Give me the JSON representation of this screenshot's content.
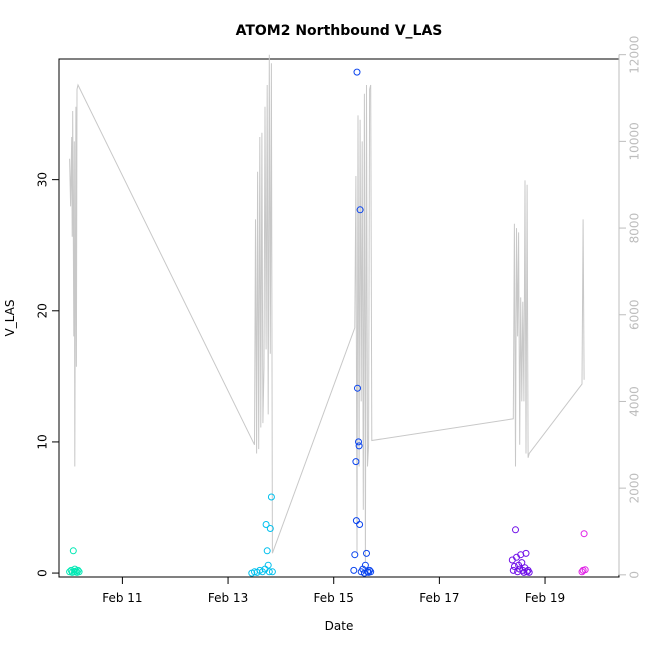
{
  "chart_data": {
    "type": "scatter",
    "title": "ATOM2 Northbound V_LAS",
    "xlabel": "Date",
    "ylabel": "V_LAS",
    "x_ticks": [
      {
        "value": 11.0,
        "label": "Feb 11"
      },
      {
        "value": 13.0,
        "label": "Feb 13"
      },
      {
        "value": 15.0,
        "label": "Feb 15"
      },
      {
        "value": 17.0,
        "label": "Feb 17"
      },
      {
        "value": 19.0,
        "label": "Feb 19"
      }
    ],
    "xlim": [
      9.8,
      20.4
    ],
    "ylim": [
      -0.3,
      39.2
    ],
    "y_ticks": [
      0,
      10,
      20,
      30
    ],
    "y2lim": [
      -50,
      11900
    ],
    "y2_ticks": [
      0,
      2000,
      4000,
      6000,
      8000,
      10000,
      12000
    ],
    "grid": false,
    "legend": "none",
    "colors": {
      "line": "#c8c8c8",
      "frame": "#000000",
      "right_axis": "#bdbdbd"
    },
    "series": [
      {
        "color": "#00e8b4",
        "x": [
          10.0,
          10.03,
          10.05,
          10.07,
          10.09,
          10.1,
          10.12,
          10.14,
          10.16,
          10.18
        ],
        "y": [
          0.1,
          0.2,
          0.05,
          1.7,
          0.1,
          0.3,
          0.15,
          0.05,
          0.2,
          0.1
        ]
      },
      {
        "color": "#00c0ee",
        "x": [
          13.45,
          13.5,
          13.55,
          13.6,
          13.65,
          13.7,
          13.72,
          13.74,
          13.76,
          13.78,
          13.8,
          13.82,
          13.84
        ],
        "y": [
          0.0,
          0.1,
          0.05,
          0.2,
          0.1,
          0.3,
          3.7,
          1.7,
          0.6,
          0.1,
          3.4,
          5.8,
          0.1
        ]
      },
      {
        "color": "#0a44ee",
        "x": [
          15.38,
          15.4,
          15.42,
          15.43,
          15.44,
          15.45,
          15.47,
          15.48,
          15.49,
          15.5,
          15.52,
          15.55,
          15.58,
          15.6,
          15.62,
          15.64,
          15.66,
          15.68,
          15.7
        ],
        "y": [
          0.2,
          1.4,
          8.5,
          4.0,
          38.2,
          14.1,
          10.0,
          9.7,
          3.7,
          27.7,
          0.1,
          0.3,
          0.0,
          0.6,
          1.5,
          0.1,
          0.05,
          0.2,
          0.1
        ]
      },
      {
        "color": "#7010e8",
        "x": [
          18.38,
          18.4,
          18.42,
          18.44,
          18.46,
          18.48,
          18.5,
          18.52,
          18.54,
          18.56,
          18.58,
          18.6,
          18.62,
          18.64,
          18.66,
          18.68,
          18.7
        ],
        "y": [
          1.0,
          0.2,
          0.5,
          3.3,
          1.2,
          0.1,
          0.6,
          0.3,
          1.4,
          0.8,
          0.2,
          0.05,
          0.4,
          1.5,
          0.1,
          0.2,
          0.05
        ]
      },
      {
        "color": "#e020e6",
        "x": [
          19.7,
          19.72,
          19.74,
          19.76
        ],
        "y": [
          0.1,
          0.2,
          3.0,
          0.25
        ]
      }
    ],
    "line_series": {
      "axis": "right",
      "x": [
        10.0,
        10.02,
        10.04,
        10.05,
        10.06,
        10.08,
        10.09,
        10.1,
        10.12,
        10.13,
        10.14,
        10.16,
        13.5,
        13.52,
        13.54,
        13.56,
        13.58,
        13.6,
        13.62,
        13.64,
        13.66,
        13.68,
        13.7,
        13.72,
        13.74,
        13.76,
        13.78,
        13.8,
        13.82,
        13.84,
        15.4,
        15.42,
        15.44,
        15.46,
        15.48,
        15.5,
        15.52,
        15.54,
        15.56,
        15.58,
        15.6,
        15.62,
        15.64,
        15.66,
        15.68,
        15.7,
        15.72,
        18.4,
        18.42,
        18.44,
        18.46,
        18.48,
        18.5,
        18.52,
        18.54,
        18.56,
        18.58,
        18.6,
        18.62,
        18.64,
        18.66,
        18.68,
        18.7,
        19.7,
        19.72,
        19.74
      ],
      "y": [
        9600,
        8500,
        10100,
        7800,
        10700,
        5500,
        10000,
        2500,
        10800,
        4800,
        11200,
        11300,
        3000,
        8200,
        2800,
        9300,
        2900,
        10100,
        3400,
        10200,
        3500,
        4800,
        10800,
        5200,
        11300,
        3700,
        12000,
        5100,
        11800,
        500,
        5700,
        9200,
        500,
        10600,
        2500,
        10500,
        4000,
        10000,
        1500,
        11100,
        300,
        11300,
        2500,
        3000,
        11200,
        11300,
        3100,
        3600,
        8100,
        2500,
        8000,
        5500,
        7900,
        3000,
        6400,
        4000,
        6300,
        4000,
        9100,
        2800,
        9000,
        2700,
        2800,
        4400,
        8200,
        4500
      ]
    }
  }
}
